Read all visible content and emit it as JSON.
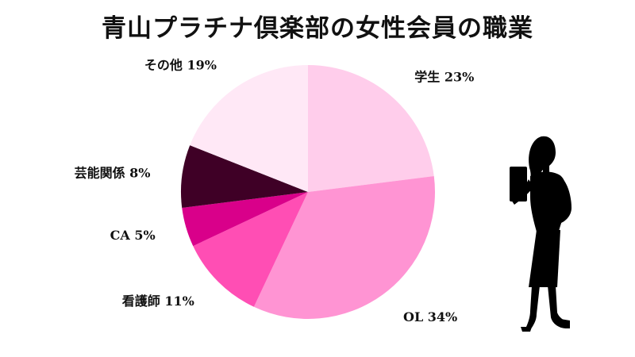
{
  "title": "青山プラチナ倶楽部の女性会員の職業",
  "chart_data": {
    "type": "pie",
    "title": "青山プラチナ倶楽部の女性会員の職業",
    "unit": "%",
    "slices": [
      {
        "label": "学生",
        "value": 23,
        "color": "#FFCDEB"
      },
      {
        "label": "OL",
        "value": 34,
        "color": "#FF94D3"
      },
      {
        "label": "看護師",
        "value": 11,
        "color": "#FF4EB4"
      },
      {
        "label": "CA",
        "value": 5,
        "color": "#D9008A"
      },
      {
        "label": "芸能関係",
        "value": 8,
        "color": "#3F0026"
      },
      {
        "label": "その他",
        "value": 19,
        "color": "#FFE8F6"
      }
    ],
    "legend": "none"
  },
  "illustration": {
    "icon": "businesswoman-silhouette-icon"
  }
}
